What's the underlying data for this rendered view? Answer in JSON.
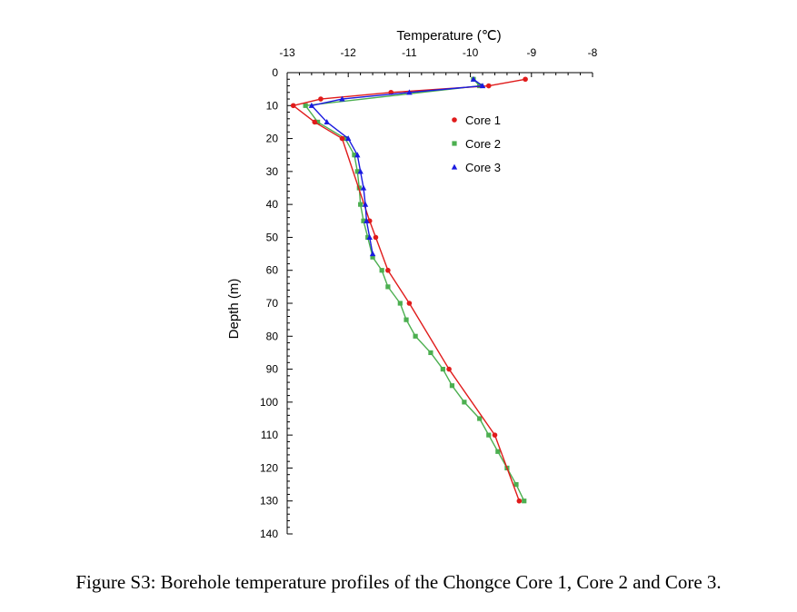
{
  "chart_data": {
    "type": "line",
    "title": "",
    "xlabel": "Temperature (℃)",
    "ylabel": "Depth (m)",
    "xlim": [
      -13,
      -8
    ],
    "ylim": [
      0,
      140
    ],
    "x_axis_position": "top",
    "y_inverted": true,
    "grid": false,
    "x_ticks": [
      -13,
      -12,
      -11,
      -10,
      -9,
      -8
    ],
    "x_tick_labels": [
      "-13",
      "-12",
      "-11",
      "-10",
      "-9",
      "-8"
    ],
    "y_ticks": [
      0,
      10,
      20,
      30,
      40,
      50,
      60,
      70,
      80,
      90,
      100,
      110,
      120,
      130,
      140
    ],
    "y_tick_labels": [
      "0",
      "10",
      "20",
      "30",
      "40",
      "50",
      "60",
      "70",
      "80",
      "90",
      "100",
      "110",
      "120",
      "130",
      "140"
    ],
    "legend": {
      "placement": "top-right"
    },
    "series": [
      {
        "name": "Core 1",
        "color": "#e01b1b",
        "marker": "circle",
        "points": [
          [
            -9.1,
            2
          ],
          [
            -9.7,
            4
          ],
          [
            -11.3,
            6
          ],
          [
            -12.45,
            8
          ],
          [
            -12.9,
            10
          ],
          [
            -12.55,
            15
          ],
          [
            -12.1,
            20
          ],
          [
            -11.65,
            45
          ],
          [
            -11.55,
            50
          ],
          [
            -11.35,
            60
          ],
          [
            -11.0,
            70
          ],
          [
            -10.35,
            90
          ],
          [
            -9.6,
            110
          ],
          [
            -9.2,
            130
          ]
        ]
      },
      {
        "name": "Core 2",
        "color": "#4caf50",
        "marker": "square",
        "points": [
          [
            -9.95,
            2
          ],
          [
            -9.85,
            4
          ],
          [
            -12.7,
            10
          ],
          [
            -12.5,
            15
          ],
          [
            -12.05,
            20
          ],
          [
            -11.9,
            25
          ],
          [
            -11.85,
            30
          ],
          [
            -11.82,
            35
          ],
          [
            -11.8,
            40
          ],
          [
            -11.75,
            45
          ],
          [
            -11.68,
            50
          ],
          [
            -11.6,
            56
          ],
          [
            -11.45,
            60
          ],
          [
            -11.35,
            65
          ],
          [
            -11.15,
            70
          ],
          [
            -11.05,
            75
          ],
          [
            -10.9,
            80
          ],
          [
            -10.65,
            85
          ],
          [
            -10.45,
            90
          ],
          [
            -10.3,
            95
          ],
          [
            -10.1,
            100
          ],
          [
            -9.85,
            105
          ],
          [
            -9.7,
            110
          ],
          [
            -9.55,
            115
          ],
          [
            -9.4,
            120
          ],
          [
            -9.25,
            125
          ],
          [
            -9.12,
            130
          ]
        ]
      },
      {
        "name": "Core 3",
        "color": "#1a1ae0",
        "marker": "triangle",
        "points": [
          [
            -9.95,
            2
          ],
          [
            -9.8,
            4
          ],
          [
            -11.0,
            6
          ],
          [
            -12.1,
            8
          ],
          [
            -12.6,
            10
          ],
          [
            -12.35,
            15
          ],
          [
            -12.0,
            20
          ],
          [
            -11.85,
            25
          ],
          [
            -11.8,
            30
          ],
          [
            -11.75,
            35
          ],
          [
            -11.72,
            40
          ],
          [
            -11.7,
            45
          ],
          [
            -11.65,
            50
          ],
          [
            -11.6,
            55
          ]
        ]
      }
    ]
  },
  "caption": "Figure S3: Borehole temperature profiles of the Chongce Core 1, Core 2 and Core 3."
}
